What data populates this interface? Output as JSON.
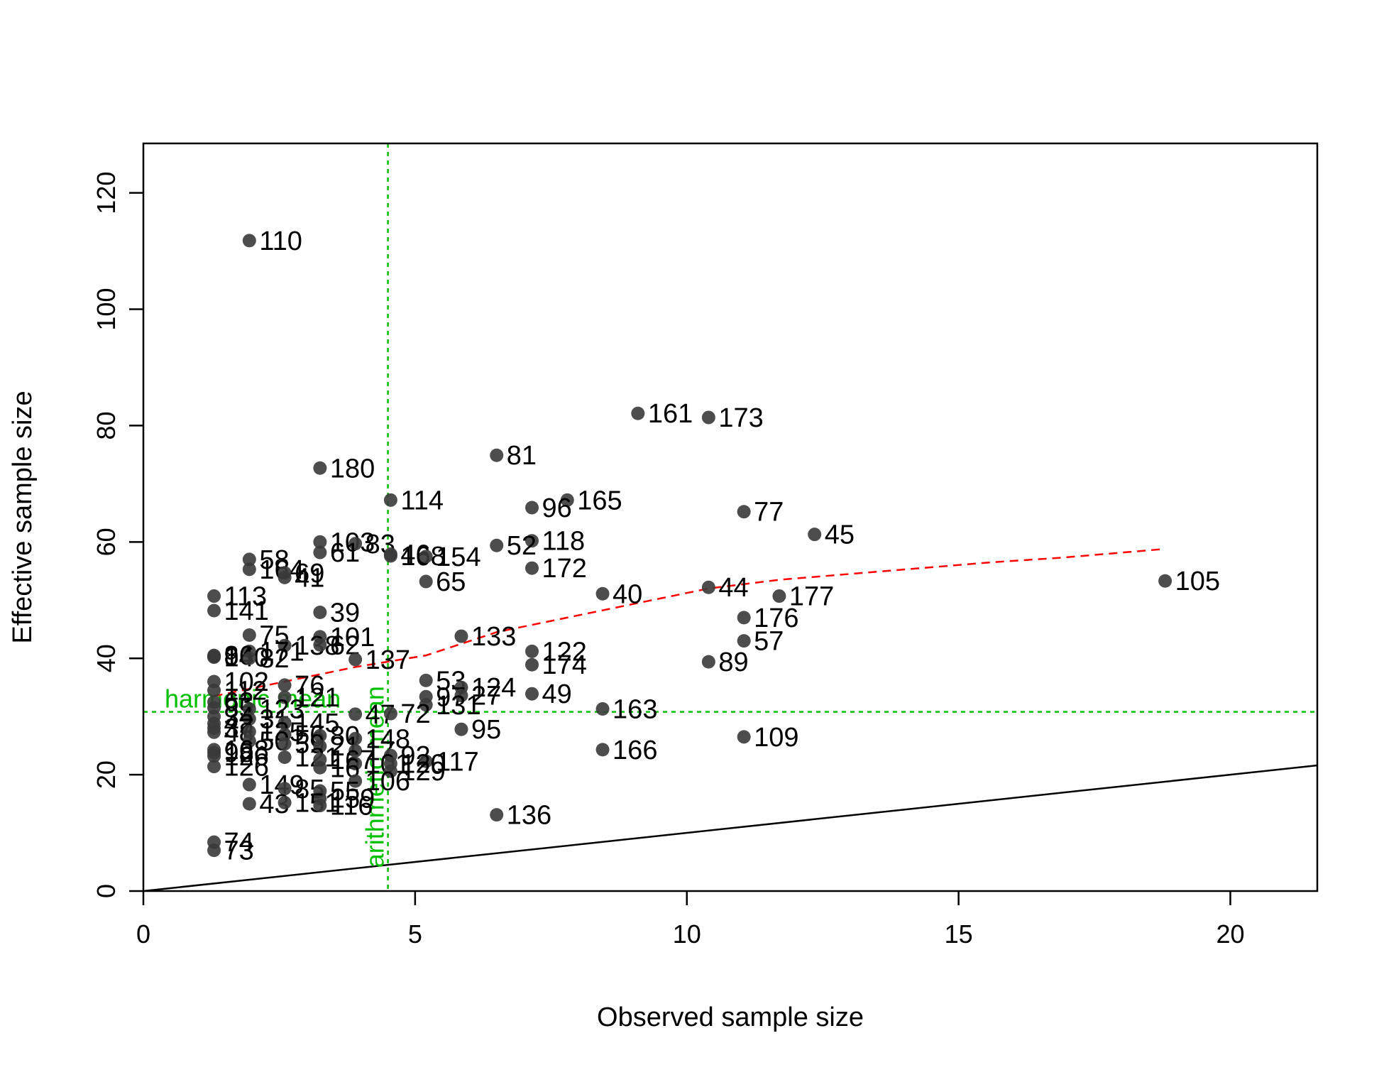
{
  "chart_data": {
    "type": "scatter",
    "title": "",
    "xlabel": "Observed sample size",
    "ylabel": "Effective sample size",
    "xlim": [
      0,
      21.6
    ],
    "ylim": [
      0,
      128.5
    ],
    "xticks": [
      0,
      5,
      10,
      15,
      20
    ],
    "yticks": [
      0,
      20,
      40,
      60,
      80,
      100,
      120
    ],
    "grid": false,
    "legend": "none",
    "colors": {
      "points": "#3a3a3a",
      "trend": "#ff0000",
      "reference_lines": "#00c000",
      "identity_line": "#000000"
    },
    "reference_lines": {
      "arithmetic_mean": {
        "x": 4.5,
        "label": "arithmetic mean"
      },
      "harmonic_mean": {
        "y": 30.8,
        "label": "harmonic mean"
      }
    },
    "identity_line": {
      "slope": 1
    },
    "trend": [
      [
        1.3,
        33.5
      ],
      [
        2.6,
        36.0
      ],
      [
        3.9,
        38.5
      ],
      [
        5.2,
        40.5
      ],
      [
        6.5,
        44.5
      ],
      [
        7.8,
        47.0
      ],
      [
        9.1,
        49.5
      ],
      [
        10.4,
        52.0
      ],
      [
        11.7,
        53.5
      ],
      [
        13.0,
        54.5
      ],
      [
        14.3,
        55.5
      ],
      [
        15.6,
        56.5
      ],
      [
        16.9,
        57.3
      ],
      [
        18.8,
        58.8
      ]
    ],
    "points": [
      {
        "label": "110",
        "x": 1.95,
        "y": 111.8
      },
      {
        "label": "161",
        "x": 9.1,
        "y": 82.1
      },
      {
        "label": "173",
        "x": 10.4,
        "y": 81.4
      },
      {
        "label": "81",
        "x": 6.5,
        "y": 74.9
      },
      {
        "label": "180",
        "x": 3.25,
        "y": 72.7
      },
      {
        "label": "114",
        "x": 4.55,
        "y": 67.2
      },
      {
        "label": "165",
        "x": 7.8,
        "y": 67.2
      },
      {
        "label": "96",
        "x": 7.15,
        "y": 65.9
      },
      {
        "label": "77",
        "x": 11.05,
        "y": 65.2
      },
      {
        "label": "45",
        "x": 12.35,
        "y": 61.3
      },
      {
        "label": "103",
        "x": 3.25,
        "y": 60.0
      },
      {
        "label": "83",
        "x": 3.9,
        "y": 59.7
      },
      {
        "label": "118",
        "x": 7.15,
        "y": 60.2
      },
      {
        "label": "52",
        "x": 6.5,
        "y": 59.4
      },
      {
        "label": "61",
        "x": 3.25,
        "y": 58.2
      },
      {
        "label": "46",
        "x": 4.55,
        "y": 57.9
      },
      {
        "label": "168",
        "x": 4.55,
        "y": 57.6
      },
      {
        "label": "154",
        "x": 5.2,
        "y": 57.5
      },
      {
        "label": "58",
        "x": 1.95,
        "y": 57.0
      },
      {
        "label": "172",
        "x": 7.15,
        "y": 55.5
      },
      {
        "label": "164",
        "x": 1.95,
        "y": 55.3
      },
      {
        "label": "69",
        "x": 2.6,
        "y": 54.7
      },
      {
        "label": "41",
        "x": 2.6,
        "y": 53.9
      },
      {
        "label": "65",
        "x": 5.2,
        "y": 53.2
      },
      {
        "label": "105",
        "x": 18.8,
        "y": 53.3
      },
      {
        "label": "44",
        "x": 10.4,
        "y": 52.2
      },
      {
        "label": "40",
        "x": 8.45,
        "y": 51.1
      },
      {
        "label": "113",
        "x": 1.3,
        "y": 50.7
      },
      {
        "label": "177",
        "x": 11.7,
        "y": 50.7
      },
      {
        "label": "141",
        "x": 1.3,
        "y": 48.2
      },
      {
        "label": "39",
        "x": 3.25,
        "y": 47.9
      },
      {
        "label": "176",
        "x": 11.05,
        "y": 47.0
      },
      {
        "label": "75",
        "x": 1.95,
        "y": 44.0
      },
      {
        "label": "133",
        "x": 5.85,
        "y": 43.8
      },
      {
        "label": "101",
        "x": 3.25,
        "y": 43.7
      },
      {
        "label": "57",
        "x": 11.05,
        "y": 43.0
      },
      {
        "label": "138",
        "x": 2.6,
        "y": 42.2
      },
      {
        "label": "62",
        "x": 3.25,
        "y": 42.3
      },
      {
        "label": "171",
        "x": 1.95,
        "y": 41.2
      },
      {
        "label": "122",
        "x": 7.15,
        "y": 41.2
      },
      {
        "label": "86",
        "x": 1.3,
        "y": 40.5
      },
      {
        "label": "94",
        "x": 1.3,
        "y": 40.3
      },
      {
        "label": "140",
        "x": 1.3,
        "y": 40.2
      },
      {
        "label": "82",
        "x": 1.95,
        "y": 40.0
      },
      {
        "label": "137",
        "x": 3.9,
        "y": 39.8
      },
      {
        "label": "89",
        "x": 10.4,
        "y": 39.4
      },
      {
        "label": "174",
        "x": 7.15,
        "y": 38.9
      },
      {
        "label": "53",
        "x": 5.2,
        "y": 36.2
      },
      {
        "label": "102",
        "x": 1.3,
        "y": 36.0
      },
      {
        "label": "76",
        "x": 2.6,
        "y": 35.4
      },
      {
        "label": "124",
        "x": 5.85,
        "y": 35.0
      },
      {
        "label": "112",
        "x": 1.3,
        "y": 34.5
      },
      {
        "label": "97",
        "x": 5.2,
        "y": 33.4
      },
      {
        "label": "27",
        "x": 5.85,
        "y": 33.6
      },
      {
        "label": "49",
        "x": 7.15,
        "y": 33.9
      },
      {
        "label": "121",
        "x": 2.6,
        "y": 33.3
      },
      {
        "label": "131",
        "x": 5.2,
        "y": 32.0
      },
      {
        "label": "63",
        "x": 1.3,
        "y": 32.5
      },
      {
        "label": "85",
        "x": 1.3,
        "y": 31.5
      },
      {
        "label": "123",
        "x": 1.95,
        "y": 31.3
      },
      {
        "label": "163",
        "x": 8.45,
        "y": 31.3
      },
      {
        "label": "47",
        "x": 3.9,
        "y": 30.4
      },
      {
        "label": "72",
        "x": 4.55,
        "y": 30.5
      },
      {
        "label": "34",
        "x": 1.3,
        "y": 30.0
      },
      {
        "label": "31",
        "x": 1.95,
        "y": 29.6
      },
      {
        "label": "145",
        "x": 2.6,
        "y": 28.9
      },
      {
        "label": "42",
        "x": 1.3,
        "y": 28.8
      },
      {
        "label": "95",
        "x": 5.85,
        "y": 27.8
      },
      {
        "label": "37",
        "x": 1.3,
        "y": 28.0
      },
      {
        "label": "48",
        "x": 1.3,
        "y": 27.3
      },
      {
        "label": "135",
        "x": 1.95,
        "y": 27.4
      },
      {
        "label": "56",
        "x": 2.6,
        "y": 26.9
      },
      {
        "label": "80",
        "x": 3.25,
        "y": 26.7
      },
      {
        "label": "148",
        "x": 3.9,
        "y": 26.2
      },
      {
        "label": "109",
        "x": 11.05,
        "y": 26.5
      },
      {
        "label": "50",
        "x": 1.95,
        "y": 25.8
      },
      {
        "label": "59",
        "x": 2.6,
        "y": 25.3
      },
      {
        "label": "21",
        "x": 3.25,
        "y": 24.9
      },
      {
        "label": "168b",
        "x": 1.3,
        "y": 24.3
      },
      {
        "label": "166",
        "x": 8.45,
        "y": 24.3
      },
      {
        "label": "17",
        "x": 3.9,
        "y": 24.1
      },
      {
        "label": "98",
        "x": 1.3,
        "y": 23.8
      },
      {
        "label": "92",
        "x": 4.55,
        "y": 23.3
      },
      {
        "label": "126b",
        "x": 1.3,
        "y": 23.2
      },
      {
        "label": "121b",
        "x": 2.6,
        "y": 23.0
      },
      {
        "label": "167",
        "x": 3.25,
        "y": 22.6
      },
      {
        "label": "117",
        "x": 5.2,
        "y": 22.3
      },
      {
        "label": "101b",
        "x": 3.9,
        "y": 21.9
      },
      {
        "label": "120",
        "x": 4.55,
        "y": 21.9
      },
      {
        "label": "126",
        "x": 1.3,
        "y": 21.4
      },
      {
        "label": "16",
        "x": 3.25,
        "y": 21.2
      },
      {
        "label": "129",
        "x": 4.55,
        "y": 20.6
      },
      {
        "label": "106",
        "x": 3.9,
        "y": 18.9
      },
      {
        "label": "149",
        "x": 1.95,
        "y": 18.3
      },
      {
        "label": "85b",
        "x": 2.6,
        "y": 17.6
      },
      {
        "label": "55",
        "x": 3.25,
        "y": 17.2
      },
      {
        "label": "159",
        "x": 3.25,
        "y": 15.9
      },
      {
        "label": "43",
        "x": 1.95,
        "y": 15.0
      },
      {
        "label": "151",
        "x": 2.6,
        "y": 15.2
      },
      {
        "label": "116",
        "x": 3.25,
        "y": 14.7
      },
      {
        "label": "136",
        "x": 6.5,
        "y": 13.1
      },
      {
        "label": "74",
        "x": 1.3,
        "y": 8.4
      },
      {
        "label": "73",
        "x": 1.3,
        "y": 7.0
      }
    ]
  }
}
